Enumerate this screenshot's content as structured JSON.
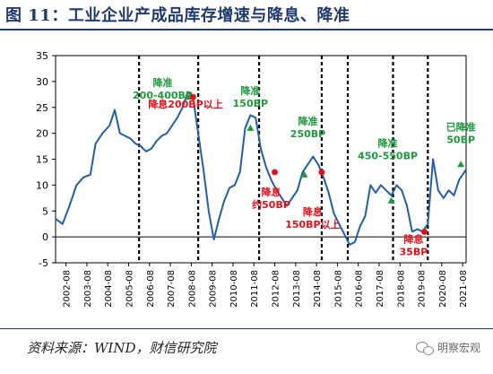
{
  "title": "图 11：工业企业产成品库存增速与降息、降准",
  "source": "资料来源：WIND，财信研究院",
  "watermark": "明察宏观",
  "icons": {
    "watermark": "wechat-icon"
  },
  "colors": {
    "line": "#1f5fa8",
    "green_label": "#1e9a3c",
    "red_label": "#e0121a",
    "title": "#1f3b6e"
  },
  "chart_data": {
    "type": "line",
    "title": "",
    "xlabel": "",
    "ylabel": "",
    "ylim": [
      -5,
      35
    ],
    "yticks": [
      -5,
      0,
      5,
      10,
      15,
      20,
      25,
      30,
      35
    ],
    "xlim": [
      "2002-02",
      "2021-10"
    ],
    "xticks": [
      "2002-08",
      "2003-08",
      "2004-08",
      "2005-08",
      "2006-08",
      "2007-08",
      "2008-08",
      "2009-08",
      "2010-08",
      "2011-08",
      "2012-08",
      "2013-08",
      "2014-08",
      "2015-08",
      "2016-08",
      "2017-08",
      "2018-08",
      "2019-08",
      "2020-08",
      "2021-08"
    ],
    "grid": false,
    "legend": "none",
    "series": [
      {
        "values": [
          [
            "2002-02",
            3.5
          ],
          [
            "2002-06",
            2.5
          ],
          [
            "2002-10",
            6
          ],
          [
            "2003-02",
            10
          ],
          [
            "2003-06",
            11.5
          ],
          [
            "2003-10",
            12
          ],
          [
            "2004-01",
            18
          ],
          [
            "2004-05",
            20
          ],
          [
            "2004-09",
            21.5
          ],
          [
            "2004-12",
            24.5
          ],
          [
            "2005-03",
            20
          ],
          [
            "2005-06",
            19.5
          ],
          [
            "2005-09",
            19
          ],
          [
            "2005-12",
            18
          ],
          [
            "2006-03",
            17.5
          ],
          [
            "2006-06",
            16.5
          ],
          [
            "2006-09",
            17
          ],
          [
            "2006-12",
            18.5
          ],
          [
            "2007-03",
            19.5
          ],
          [
            "2007-06",
            20
          ],
          [
            "2007-09",
            21.5
          ],
          [
            "2007-12",
            23
          ],
          [
            "2008-03",
            25
          ],
          [
            "2008-06",
            28
          ],
          [
            "2008-09",
            27
          ],
          [
            "2008-12",
            20
          ],
          [
            "2009-03",
            13
          ],
          [
            "2009-06",
            5
          ],
          [
            "2009-09",
            -0.5
          ],
          [
            "2009-12",
            3.5
          ],
          [
            "2010-03",
            7
          ],
          [
            "2010-06",
            9.5
          ],
          [
            "2010-09",
            10
          ],
          [
            "2010-12",
            12.5
          ],
          [
            "2011-03",
            21
          ],
          [
            "2011-06",
            23.5
          ],
          [
            "2011-09",
            23
          ],
          [
            "2011-12",
            17
          ],
          [
            "2012-03",
            13.5
          ],
          [
            "2012-06",
            11
          ],
          [
            "2012-09",
            9
          ],
          [
            "2012-12",
            7.5
          ],
          [
            "2013-03",
            6
          ],
          [
            "2013-06",
            7.5
          ],
          [
            "2013-09",
            9
          ],
          [
            "2013-12",
            12.5
          ],
          [
            "2014-03",
            14
          ],
          [
            "2014-06",
            15.5
          ],
          [
            "2014-09",
            14
          ],
          [
            "2014-12",
            11.5
          ],
          [
            "2015-03",
            8.5
          ],
          [
            "2015-06",
            4.5
          ],
          [
            "2015-09",
            2.5
          ],
          [
            "2015-12",
            0.5
          ],
          [
            "2016-03",
            -1.5
          ],
          [
            "2016-06",
            -1
          ],
          [
            "2016-09",
            2
          ],
          [
            "2016-12",
            4
          ],
          [
            "2017-03",
            10
          ],
          [
            "2017-06",
            8.5
          ],
          [
            "2017-09",
            10
          ],
          [
            "2017-12",
            9
          ],
          [
            "2018-03",
            8
          ],
          [
            "2018-06",
            10
          ],
          [
            "2018-09",
            9
          ],
          [
            "2018-12",
            6
          ],
          [
            "2019-03",
            1
          ],
          [
            "2019-06",
            1.5
          ],
          [
            "2019-09",
            1
          ],
          [
            "2019-12",
            2.5
          ],
          [
            "2020-03",
            15
          ],
          [
            "2020-06",
            9
          ],
          [
            "2020-09",
            7.5
          ],
          [
            "2020-12",
            9
          ],
          [
            "2021-03",
            8
          ],
          [
            "2021-06",
            11
          ],
          [
            "2021-10",
            13
          ]
        ]
      }
    ],
    "event_lines": [
      "2006-02",
      "2008-12",
      "2011-11",
      "2014-11",
      "2016-02",
      "2018-04",
      "2019-12"
    ],
    "annotations": [
      {
        "text": "降准",
        "sub": "200-400BP",
        "color": "green",
        "at": [
          "2008-06",
          27
        ]
      },
      {
        "text": "降息200BP以上",
        "color": "red",
        "at": [
          "2008-09",
          27
        ]
      },
      {
        "text": "降准",
        "sub": "150BP",
        "color": "green",
        "at": [
          "2011-06",
          21
        ]
      },
      {
        "text": "降息",
        "sub": "约50BP",
        "color": "red",
        "at": [
          "2012-08",
          12.5
        ]
      },
      {
        "text": "降准",
        "sub": "250BP",
        "color": "green",
        "at": [
          "2014-01",
          12
        ]
      },
      {
        "text": "降息",
        "sub": "150BP以上",
        "color": "red",
        "at": [
          "2014-11",
          12.5
        ]
      },
      {
        "text": "降准",
        "sub": "450-550BP",
        "color": "green",
        "at": [
          "2018-03",
          7
        ]
      },
      {
        "text": "降息",
        "sub": "35BP",
        "color": "red",
        "at": [
          "2019-10",
          1
        ]
      },
      {
        "text": "已降准",
        "sub": "50BP",
        "color": "green",
        "at": [
          "2021-07",
          14
        ]
      }
    ]
  }
}
